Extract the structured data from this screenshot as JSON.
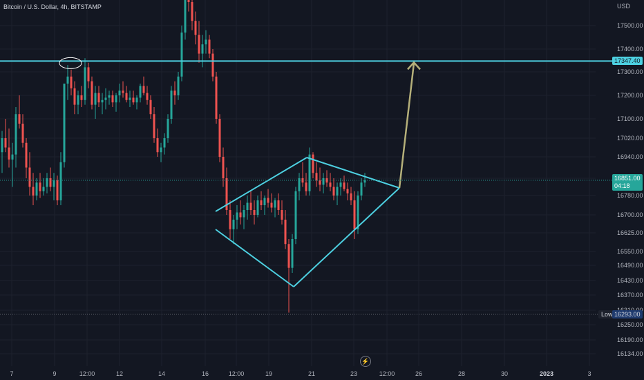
{
  "header": {
    "title": "Bitcoin / U.S. Dollar, 4h, BITSTAMP",
    "currency": "USD"
  },
  "colors": {
    "background": "#131722",
    "up": "#26a69a",
    "down": "#ef5350",
    "pattern": "#4dd0e1",
    "target_arrow": "#b5b07a",
    "grid": "#1e222d"
  },
  "chart_data": {
    "type": "candlestick",
    "y_axis": {
      "ticks": [
        17500.0,
        17400.0,
        17300.0,
        17200.0,
        17100.0,
        17020.0,
        16940.0,
        16860.0,
        16780.0,
        16700.0,
        16625.0,
        16550.0,
        16490.0,
        16430.0,
        16370.0,
        16310.0,
        16250.0,
        16190.0,
        16134.0
      ],
      "tick_labels": [
        "17500.00",
        "17400.00",
        "17300.00",
        "17200.00",
        "17100.00",
        "17020.00",
        "16940.00",
        "",
        "16780.00",
        "16700.00",
        "16625.00",
        "16550.00",
        "16490.00",
        "16430.00",
        "16370.00",
        "16310.00",
        "16250.00",
        "16190.00",
        "16134.00"
      ]
    },
    "x_axis": {
      "labels": [
        "7",
        "9",
        "12:00",
        "12",
        "14",
        "16",
        "12:00",
        "19",
        "21",
        "23",
        "12:00",
        "26",
        "28",
        "30",
        "2023",
        "3"
      ],
      "bold": [
        "2023"
      ]
    },
    "horizontal_level": {
      "value": 17347.4,
      "label": "17347.40"
    },
    "last_price": {
      "value": 16851.0,
      "label": "16851.00",
      "countdown": "04:18"
    },
    "low": {
      "value": 16293.0,
      "label": "16293.00",
      "caption": "Low"
    },
    "candles_ohlc": [
      [
        16960,
        17050,
        16880,
        17020
      ],
      [
        17020,
        17100,
        16960,
        16980
      ],
      [
        16980,
        17060,
        16900,
        16930
      ],
      [
        16930,
        17000,
        16820,
        16950
      ],
      [
        16950,
        17150,
        16900,
        17120
      ],
      [
        17120,
        17200,
        17060,
        17080
      ],
      [
        17080,
        17120,
        16980,
        17000
      ],
      [
        17000,
        17020,
        16860,
        16900
      ],
      [
        16900,
        16960,
        16780,
        16820
      ],
      [
        16820,
        16880,
        16740,
        16780
      ],
      [
        16780,
        16860,
        16760,
        16840
      ],
      [
        16840,
        16880,
        16770,
        16800
      ],
      [
        16800,
        16860,
        16780,
        16820
      ],
      [
        16820,
        16880,
        16790,
        16860
      ],
      [
        16860,
        16900,
        16800,
        16820
      ],
      [
        16820,
        16880,
        16760,
        16850
      ],
      [
        16850,
        16870,
        16740,
        16760
      ],
      [
        16760,
        16960,
        16740,
        16920
      ],
      [
        16920,
        17150,
        16900,
        17250
      ],
      [
        17250,
        17330,
        17180,
        17280
      ],
      [
        17280,
        17310,
        17200,
        17230
      ],
      [
        17230,
        17260,
        17120,
        17160
      ],
      [
        17160,
        17220,
        17120,
        17200
      ],
      [
        17200,
        17240,
        17150,
        17180
      ],
      [
        17180,
        17360,
        17160,
        17320
      ],
      [
        17320,
        17340,
        17230,
        17260
      ],
      [
        17260,
        17280,
        17140,
        17160
      ],
      [
        17160,
        17240,
        17100,
        17210
      ],
      [
        17210,
        17240,
        17150,
        17170
      ],
      [
        17170,
        17210,
        17120,
        17180
      ],
      [
        17180,
        17230,
        17140,
        17190
      ],
      [
        17190,
        17220,
        17160,
        17200
      ],
      [
        17200,
        17220,
        17150,
        17170
      ],
      [
        17170,
        17210,
        17130,
        17200
      ],
      [
        17200,
        17250,
        17170,
        17220
      ],
      [
        17220,
        17260,
        17190,
        17210
      ],
      [
        17210,
        17240,
        17170,
        17180
      ],
      [
        17180,
        17220,
        17150,
        17190
      ],
      [
        17190,
        17220,
        17160,
        17170
      ],
      [
        17170,
        17200,
        17140,
        17190
      ],
      [
        17190,
        17250,
        17170,
        17240
      ],
      [
        17240,
        17280,
        17200,
        17210
      ],
      [
        17210,
        17240,
        17160,
        17180
      ],
      [
        17180,
        17200,
        17100,
        17120
      ],
      [
        17120,
        17150,
        17000,
        17020
      ],
      [
        17020,
        17060,
        16940,
        16960
      ],
      [
        16960,
        17000,
        16920,
        16980
      ],
      [
        16980,
        17040,
        16950,
        17020
      ],
      [
        17020,
        17120,
        17000,
        17100
      ],
      [
        17100,
        17240,
        17080,
        17220
      ],
      [
        17220,
        17260,
        17160,
        17200
      ],
      [
        17200,
        17300,
        17180,
        17280
      ],
      [
        17280,
        17500,
        17260,
        17470
      ],
      [
        17470,
        17700,
        17440,
        17660
      ],
      [
        17660,
        17720,
        17560,
        17600
      ],
      [
        17600,
        17620,
        17480,
        17520
      ],
      [
        17520,
        17560,
        17420,
        17460
      ],
      [
        17460,
        17520,
        17340,
        17380
      ],
      [
        17380,
        17460,
        17320,
        17420
      ],
      [
        17420,
        17480,
        17380,
        17440
      ],
      [
        17440,
        17460,
        17360,
        17380
      ],
      [
        17380,
        17400,
        17260,
        17280
      ],
      [
        17280,
        17300,
        17080,
        17100
      ],
      [
        17100,
        17120,
        16920,
        16940
      ],
      [
        16940,
        16980,
        16820,
        16860
      ],
      [
        16860,
        16900,
        16700,
        16720
      ],
      [
        16720,
        16760,
        16600,
        16640
      ],
      [
        16640,
        16700,
        16580,
        16680
      ],
      [
        16680,
        16740,
        16640,
        16710
      ],
      [
        16710,
        16760,
        16660,
        16690
      ],
      [
        16690,
        16740,
        16640,
        16720
      ],
      [
        16720,
        16780,
        16680,
        16750
      ],
      [
        16750,
        16800,
        16700,
        16720
      ],
      [
        16720,
        16760,
        16660,
        16700
      ],
      [
        16700,
        16780,
        16690,
        16760
      ],
      [
        16760,
        16800,
        16720,
        16740
      ],
      [
        16740,
        16780,
        16700,
        16770
      ],
      [
        16770,
        16810,
        16730,
        16750
      ],
      [
        16750,
        16790,
        16710,
        16730
      ],
      [
        16730,
        16770,
        16690,
        16760
      ],
      [
        16760,
        16790,
        16700,
        16720
      ],
      [
        16720,
        16760,
        16660,
        16680
      ],
      [
        16680,
        16720,
        16560,
        16580
      ],
      [
        16580,
        16600,
        16300,
        16480
      ],
      [
        16480,
        16620,
        16460,
        16600
      ],
      [
        16600,
        16820,
        16580,
        16800
      ],
      [
        16800,
        16880,
        16760,
        16860
      ],
      [
        16860,
        16920,
        16820,
        16840
      ],
      [
        16840,
        16880,
        16780,
        16800
      ],
      [
        16800,
        16980,
        16780,
        16950
      ],
      [
        16950,
        16960,
        16860,
        16880
      ],
      [
        16880,
        16920,
        16820,
        16850
      ],
      [
        16850,
        16900,
        16800,
        16830
      ],
      [
        16830,
        16880,
        16790,
        16860
      ],
      [
        16860,
        16890,
        16820,
        16840
      ],
      [
        16840,
        16880,
        16800,
        16820
      ],
      [
        16820,
        16860,
        16760,
        16780
      ],
      [
        16780,
        16840,
        16740,
        16820
      ],
      [
        16820,
        16860,
        16780,
        16840
      ],
      [
        16840,
        16870,
        16800,
        16810
      ],
      [
        16810,
        16840,
        16760,
        16790
      ],
      [
        16790,
        16820,
        16740,
        16760
      ],
      [
        16760,
        16800,
        16600,
        16640
      ],
      [
        16640,
        16800,
        16620,
        16780
      ],
      [
        16780,
        16860,
        16760,
        16840
      ],
      [
        16840,
        16880,
        16820,
        16851
      ]
    ]
  }
}
